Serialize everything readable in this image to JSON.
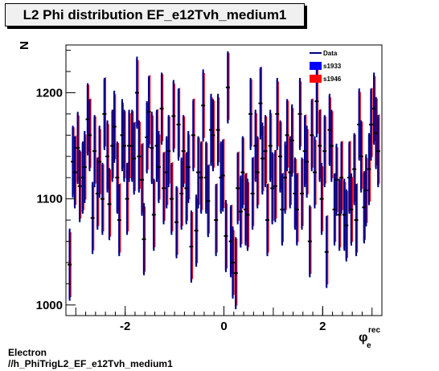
{
  "title": "L2 Phi distribution EF_e12Tvh_medium1",
  "footer": {
    "line1": "Electron",
    "line2": "//h_PhiTrigL2_EF_e12Tvh_medium1"
  },
  "chart_data": {
    "type": "scatter",
    "xlabel": "φ",
    "xlabel_sub": "e",
    "xlabel_sup": "rec",
    "ylabel": "N",
    "xlim": [
      -3.2,
      3.2
    ],
    "ylim": [
      990,
      1245
    ],
    "xticks": [
      -2,
      0,
      2
    ],
    "xtick_labels": [
      "-2",
      "0",
      "2"
    ],
    "yticks": [
      1000,
      1100,
      1200
    ],
    "ytick_labels": [
      "1000",
      "1100",
      "1200"
    ],
    "legend_position": "top-right",
    "series": [
      {
        "name": "Data",
        "color": "#000080",
        "x": [
          -3.124,
          -3.06,
          -3.02,
          -2.96,
          -2.92,
          -2.86,
          -2.82,
          -2.76,
          -2.72,
          -2.66,
          -2.62,
          -2.56,
          -2.52,
          -2.46,
          -2.42,
          -2.36,
          -2.32,
          -2.26,
          -2.22,
          -2.16,
          -2.12,
          -2.06,
          -2.02,
          -1.96,
          -1.92,
          -1.86,
          -1.82,
          -1.76,
          -1.72,
          -1.66,
          -1.62,
          -1.56,
          -1.52,
          -1.46,
          -1.42,
          -1.36,
          -1.32,
          -1.26,
          -1.22,
          -1.16,
          -1.12,
          -1.06,
          -1.02,
          -0.96,
          -0.92,
          -0.86,
          -0.82,
          -0.76,
          -0.72,
          -0.66,
          -0.62,
          -0.56,
          -0.52,
          -0.46,
          -0.42,
          -0.36,
          -0.32,
          -0.26,
          -0.22,
          -0.16,
          -0.12,
          -0.06,
          -0.02,
          0.04,
          0.08,
          0.14,
          0.18,
          0.24,
          0.28,
          0.34,
          0.38,
          0.44,
          0.48,
          0.54,
          0.58,
          0.64,
          0.68,
          0.74,
          0.78,
          0.84,
          0.88,
          0.94,
          0.98,
          1.04,
          1.08,
          1.14,
          1.18,
          1.24,
          1.28,
          1.34,
          1.38,
          1.44,
          1.48,
          1.54,
          1.58,
          1.64,
          1.68,
          1.74,
          1.78,
          1.84,
          1.88,
          1.94,
          1.98,
          2.04,
          2.08,
          2.14,
          2.18,
          2.24,
          2.28,
          2.34,
          2.38,
          2.44,
          2.48,
          2.54,
          2.58,
          2.64,
          2.68,
          2.74,
          2.78,
          2.84,
          2.88,
          2.94,
          2.98,
          3.04,
          3.08,
          3.124
        ],
        "y": [
          1038,
          1135,
          1125,
          1148,
          1112,
          1120,
          1130,
          1175,
          1160,
          1082,
          1145,
          1105,
          1135,
          1100,
          1180,
          1140,
          1095,
          1150,
          1168,
          1120,
          1080,
          1160,
          1150,
          1100,
          1150,
          1150,
          1138,
          1200,
          1140,
          1118,
          1062,
          1158,
          1182,
          1148,
          1085,
          1150,
          1130,
          1185,
          1110,
          1125,
          1145,
          1100,
          1178,
          1078,
          1170,
          1105,
          1145,
          1110,
          1130,
          1055,
          1160,
          1070,
          1125,
          1120,
          1188,
          1120,
          1098,
          1165,
          1160,
          1080,
          1165,
          1120,
          1122,
          1065,
          1205,
          1060,
          1040,
          1030,
          1110,
          1088,
          1125,
          1090,
          1085,
          1180,
          1105,
          1150,
          1125,
          1190,
          1138,
          1145,
          1080,
          1150,
          1110,
          1112,
          1180,
          1140,
          1090,
          1120,
          1160,
          1125,
          1155,
          1105,
          1090,
          1180,
          1105,
          1145,
          1135,
          1060,
          1160,
          1125,
          1192,
          1150,
          1100,
          1145,
          1050,
          1165,
          1150,
          1090,
          1118,
          1085,
          1120,
          1085,
          1075,
          1120,
          1090,
          1128,
          1080,
          1170,
          1140,
          1092,
          1108,
          1128,
          1170,
          1185,
          1162,
          1145
        ],
        "err": [
          34,
          34,
          34,
          34,
          34,
          34,
          34,
          34,
          34,
          34,
          34,
          34,
          34,
          34,
          34,
          34,
          34,
          34,
          34,
          34,
          34,
          34,
          34,
          34,
          34,
          34,
          34,
          34,
          34,
          34,
          34,
          34,
          34,
          34,
          34,
          34,
          34,
          34,
          34,
          34,
          34,
          34,
          34,
          34,
          34,
          34,
          34,
          34,
          34,
          34,
          34,
          34,
          34,
          34,
          34,
          34,
          34,
          34,
          34,
          34,
          34,
          34,
          34,
          34,
          34,
          34,
          34,
          34,
          34,
          34,
          34,
          34,
          34,
          34,
          34,
          34,
          34,
          34,
          34,
          34,
          34,
          34,
          34,
          34,
          34,
          34,
          34,
          34,
          34,
          34,
          34,
          34,
          34,
          34,
          34,
          34,
          34,
          34,
          34,
          34,
          34,
          34,
          34,
          34,
          34,
          34,
          34,
          34,
          34,
          34,
          34,
          34,
          34,
          34,
          34,
          34,
          34,
          34,
          34,
          34,
          34,
          34,
          34,
          34,
          34,
          34
        ]
      },
      {
        "name": "s1933",
        "color": "#0000ff",
        "marker": "filled-box"
      },
      {
        "name": "s1946",
        "color": "#ff0000",
        "marker": "filled-box"
      }
    ]
  }
}
